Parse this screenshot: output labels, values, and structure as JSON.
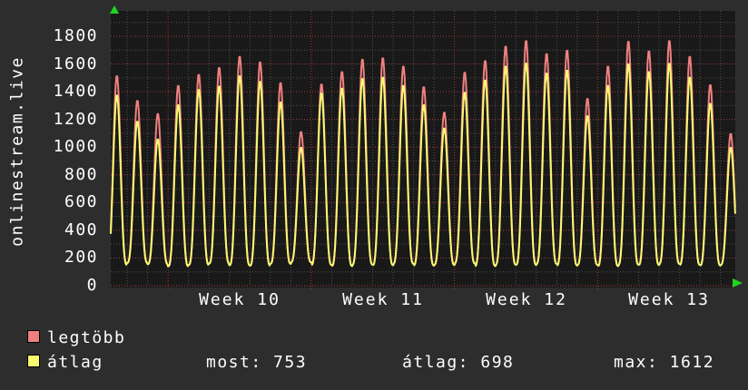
{
  "chart_data": {
    "type": "line",
    "title": "onlinestream.live",
    "ylabel": "onlinestream.live",
    "plot_background": "#191919",
    "page_background": "#2d2d2d",
    "arrow_color": "#1fd41f",
    "grid": {
      "major_color": "#a03c3c",
      "minor_color": "#505050",
      "zero_line_color": "#bc4040"
    },
    "y_axis": {
      "tick_values": [
        0,
        200,
        400,
        600,
        800,
        1000,
        1200,
        1400,
        1600,
        1800
      ],
      "range": [
        0,
        1980
      ],
      "minor_grid_step": 100,
      "major_grid_step": 200
    },
    "x_axis": {
      "week_labels": [
        "Week 10",
        "Week 11",
        "Week 12",
        "Week 13"
      ],
      "days_visible": 31,
      "minor_grid_interval": "1 day",
      "major_grid_interval": "1 week"
    },
    "series": [
      {
        "name": "legtöbb",
        "color": "#f08080",
        "daily_peak_values": [
          1520,
          1340,
          1245,
          1450,
          1530,
          1580,
          1660,
          1620,
          1470,
          1115,
          1460,
          1550,
          1640,
          1650,
          1590,
          1440,
          1255,
          1545,
          1630,
          1735,
          1775,
          1680,
          1705,
          1355,
          1590,
          1770,
          1700,
          1775,
          1660,
          1455,
          1100
        ]
      },
      {
        "name": "átlag",
        "color": "#f9f971",
        "daily_peak_values": [
          1380,
          1190,
          1060,
          1310,
          1420,
          1445,
          1520,
          1480,
          1330,
          1000,
          1395,
          1430,
          1500,
          1510,
          1450,
          1310,
          1140,
          1400,
          1490,
          1590,
          1612,
          1540,
          1560,
          1230,
          1450,
          1608,
          1550,
          1610,
          1510,
          1320,
          1000
        ]
      }
    ],
    "daily_trough_values": [
      150,
      165,
      155,
      140,
      150,
      160,
      148,
      145,
      158,
      170,
      150,
      142,
      152,
      148,
      158,
      146,
      150,
      162,
      142,
      152,
      150,
      158,
      146,
      150,
      142,
      152,
      150,
      158,
      150,
      146,
      150
    ],
    "summary": {
      "most": 753,
      "atlag": 698,
      "max": 1612
    }
  },
  "legend": {
    "rows": [
      {
        "swatch_color": "#f08080",
        "label": "legtöbb"
      },
      {
        "swatch_color": "#f9f971",
        "label": "átlag"
      }
    ],
    "stats": [
      {
        "text": "most: 753"
      },
      {
        "text": "átlag: 698"
      },
      {
        "text": "max: 1612"
      }
    ]
  }
}
